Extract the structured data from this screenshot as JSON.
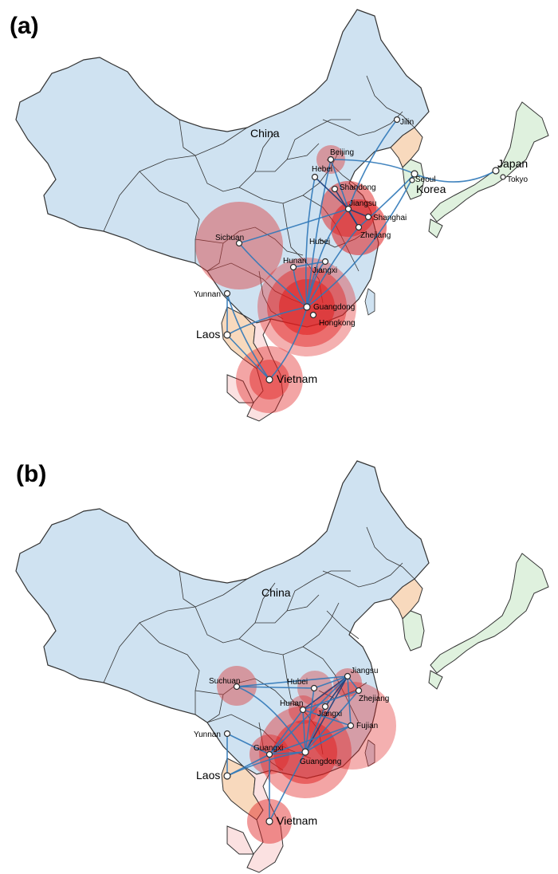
{
  "panels": [
    {
      "label": "(a)",
      "countries": {
        "china": "China",
        "korea": "Korea",
        "japan": "Japan",
        "laos": "Laos",
        "vietnam": "Vietnam"
      },
      "places": {
        "jilin": "Jilin",
        "beijing": "Beijing",
        "seoul": "Seoul",
        "hebei": "Hebei",
        "shandong": "Shandong",
        "tokyo": "Tokyo",
        "jiangsu": "Jiangsu",
        "shanghai": "Shanghai",
        "sichuan": "Sichuan",
        "hubei": "Hubei",
        "zhejiang": "Zhejiang",
        "hunan": "Hunan",
        "jiangxi": "Jiangxi",
        "yunnan": "Yunnan",
        "guangdong": "Guangdong",
        "hongkong": "Hongkong"
      }
    },
    {
      "label": "(b)",
      "countries": {
        "china": "China",
        "laos": "Laos",
        "vietnam": "Vietnam"
      },
      "places": {
        "suchuan": "Suchuan",
        "hubei": "Hubei",
        "jiangsu": "Jiangsu",
        "zhejiang": "Zhejiang",
        "hunan": "Hunan",
        "jiangxi": "Jiangxi",
        "fujian": "Fujian",
        "yunnan": "Yunnan",
        "guangxi": "Guangxi",
        "guangdong": "Guangdong"
      }
    }
  ],
  "colors": {
    "china": "#cfe2f1",
    "korea_north": "#f8d9bd",
    "korea_south": "#dff1de",
    "japan": "#dff1de",
    "laos": "#f8d9bd",
    "vietnam": "#fbe1e1",
    "border": "#333333",
    "edge": "#2f78b8",
    "halo": "#e01e1e"
  }
}
